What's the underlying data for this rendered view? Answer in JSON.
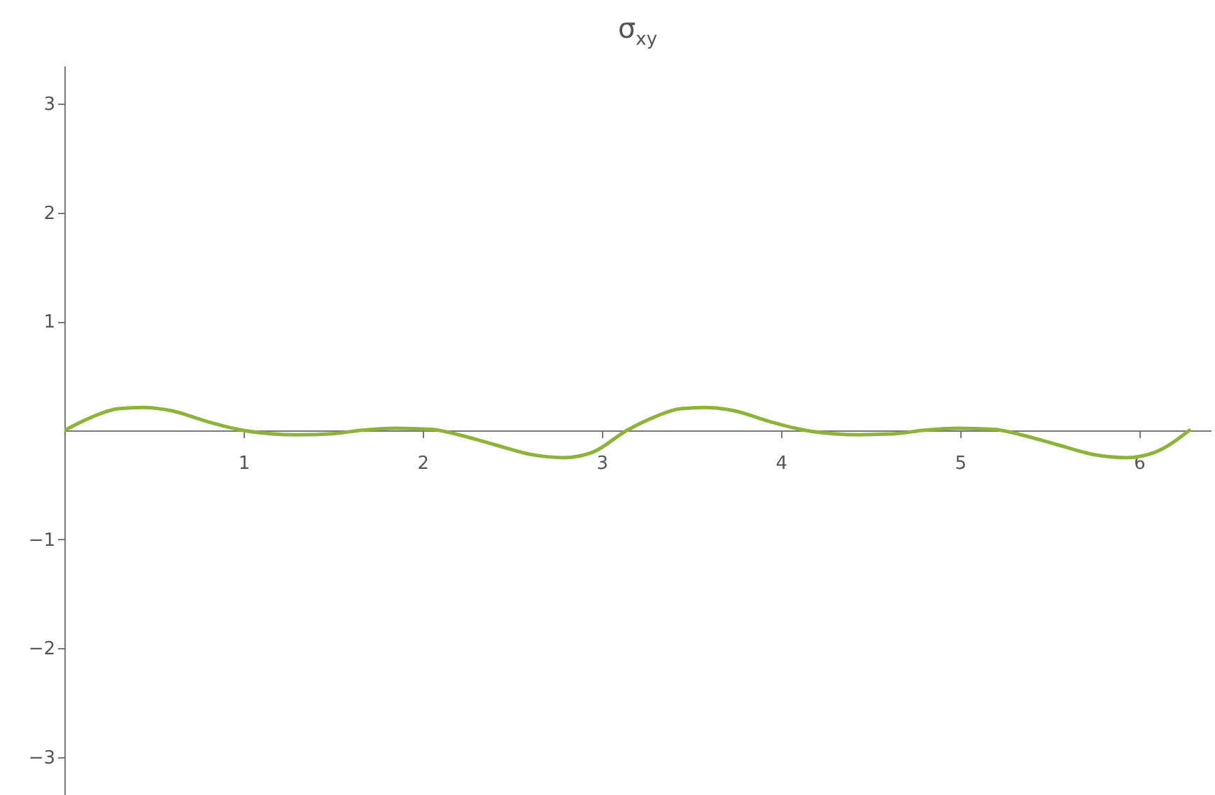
{
  "chart_data": {
    "type": "line",
    "title": "σ$_{xy}$",
    "x": [
      0,
      0.15,
      0.3,
      0.44,
      0.6,
      0.8,
      1.0,
      1.15,
      1.3,
      1.5,
      1.65,
      1.85,
      2.05,
      2.2,
      2.4,
      2.6,
      2.79,
      2.95,
      3.14,
      3.29,
      3.44,
      3.58,
      3.74,
      3.94,
      4.14,
      4.29,
      4.44,
      4.64,
      4.79,
      4.99,
      5.19,
      5.34,
      5.54,
      5.74,
      5.93,
      6.09,
      6.28
    ],
    "series": [
      {
        "color": "#8db33a",
        "values": [
          0,
          0.12,
          0.2,
          0.21,
          0.18,
          0.08,
          0,
          -0.03,
          -0.04,
          -0.03,
          0,
          0.02,
          0.01,
          -0.04,
          -0.13,
          -0.22,
          -0.25,
          -0.2,
          0,
          0.12,
          0.2,
          0.21,
          0.18,
          0.08,
          0,
          -0.03,
          -0.04,
          -0.03,
          0,
          0.02,
          0.01,
          -0.04,
          -0.13,
          -0.22,
          -0.25,
          -0.2,
          0
        ]
      }
    ],
    "xlim": [
      0,
      6.4
    ],
    "ylim": [
      -3.35,
      3.35
    ],
    "xticks": [
      1,
      2,
      3,
      4,
      5,
      6
    ],
    "yticks": [
      -3,
      -2,
      -1,
      1,
      2,
      3
    ],
    "grid": false,
    "marker": "none",
    "line_style": "solid"
  }
}
